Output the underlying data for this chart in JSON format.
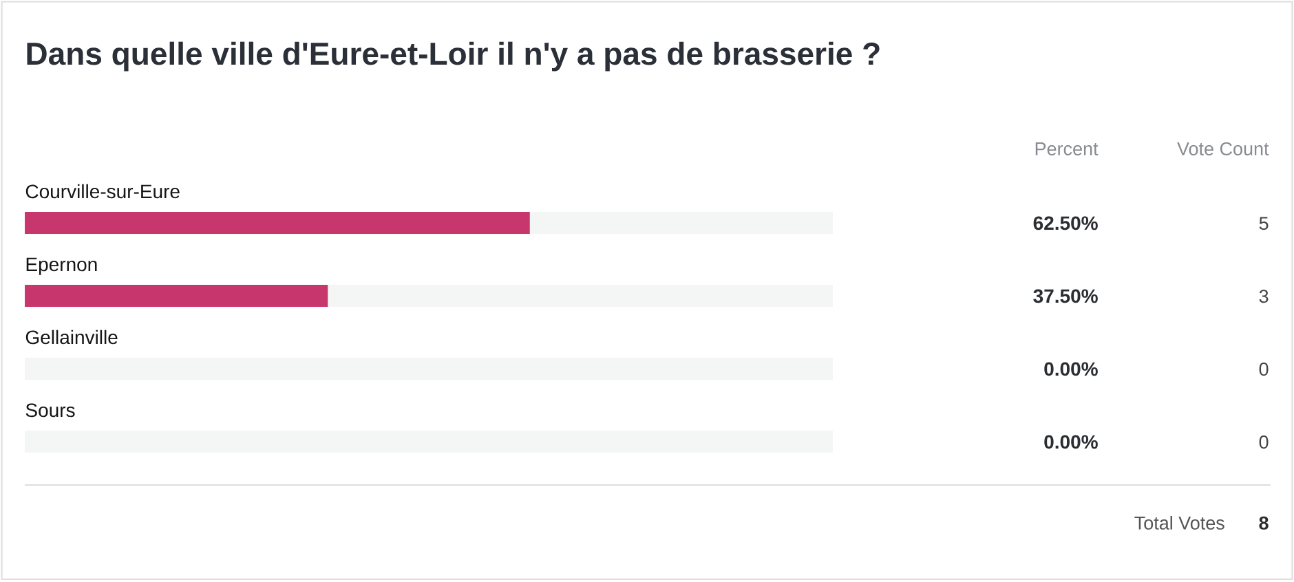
{
  "chart_data": {
    "type": "bar",
    "orientation": "horizontal",
    "stacked": true,
    "title": "Dans quelle ville d'Eure-et-Loir il n'y a pas de brasserie ?",
    "categories": [
      "Courville-sur-Eure",
      "Epernon",
      "Gellainville",
      "Sours"
    ],
    "series": [
      {
        "color": "#c8366e",
        "values": [
          62.5,
          37.5,
          0,
          0
        ],
        "value_labels": [
          "62.50%",
          "37.50%",
          "0.00%",
          "0.00%"
        ]
      },
      {
        "color": "#f4f5f5",
        "values": [
          37.5,
          62.5,
          100,
          100
        ]
      }
    ],
    "xlim": [
      0,
      100
    ],
    "tick_labels": "y",
    "annotations": [
      "Percent",
      "Vote Count",
      "5",
      "3",
      "0",
      "0",
      "Total Votes",
      "8"
    ]
  }
}
